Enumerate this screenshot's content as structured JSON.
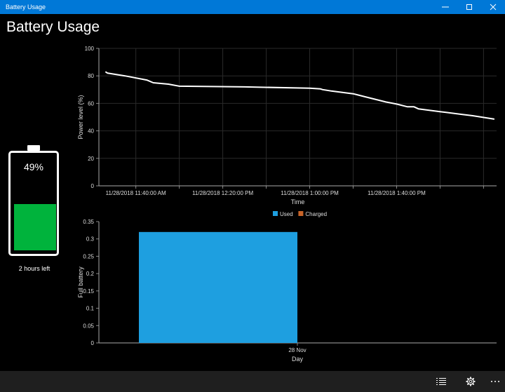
{
  "window": {
    "title": "Battery Usage"
  },
  "header": {
    "title": "Battery Usage"
  },
  "battery": {
    "percent_label": "49%",
    "level": 0.49,
    "time_left": "2 hours left",
    "fill_color": "#00b33c"
  },
  "chart_data": [
    {
      "type": "line",
      "xlabel": "Time",
      "ylabel": "Power level (%)",
      "ylim": [
        0,
        100
      ],
      "yticks": [
        "0",
        "20",
        "40",
        "60",
        "80",
        "100"
      ],
      "xticks": [
        "11/28/2018 11:40:00 AM",
        "11/28/2018 12:20:00 PM",
        "11/28/2018 1:00:00 PM",
        "11/28/2018 1:40:00 PM"
      ],
      "grid": true,
      "series": [
        {
          "points": [
            [
              "11:26",
              83
            ],
            [
              "11:27",
              82
            ],
            [
              "11:35",
              80
            ],
            [
              "11:45",
              77
            ],
            [
              "11:48",
              75
            ],
            [
              "11:55",
              74
            ],
            [
              "12:00",
              72.5
            ],
            [
              "12:30",
              72
            ],
            [
              "13:00",
              71
            ],
            [
              "13:05",
              70.5
            ],
            [
              "13:06",
              70
            ],
            [
              "13:10",
              69
            ],
            [
              "13:20",
              67
            ],
            [
              "13:25",
              65
            ],
            [
              "13:30",
              63
            ],
            [
              "13:35",
              61
            ],
            [
              "13:40",
              59.5
            ],
            [
              "13:45",
              57.5
            ],
            [
              "13:48",
              57.5
            ],
            [
              "13:50",
              56
            ],
            [
              "14:00",
              54
            ],
            [
              "14:10",
              52
            ],
            [
              "14:15",
              51
            ],
            [
              "14:25",
              48.5
            ]
          ]
        }
      ]
    },
    {
      "type": "bar",
      "xlabel": "Day",
      "ylabel": "Full battery",
      "ylim": [
        0,
        0.35
      ],
      "yticks": [
        "0",
        "0.05",
        "0.1",
        "0.15",
        "0.2",
        "0.25",
        "0.3",
        "0.35"
      ],
      "categories": [
        "28 Nov"
      ],
      "legend": "top-center",
      "series": [
        {
          "name": "Used",
          "color": "#1e9fe0",
          "values": [
            0.32
          ]
        },
        {
          "name": "Charged",
          "color": "#c86428",
          "values": [
            0
          ]
        }
      ]
    }
  ],
  "bottom_bar": {
    "icons": [
      "list-icon",
      "gear-icon",
      "more-icon"
    ]
  }
}
